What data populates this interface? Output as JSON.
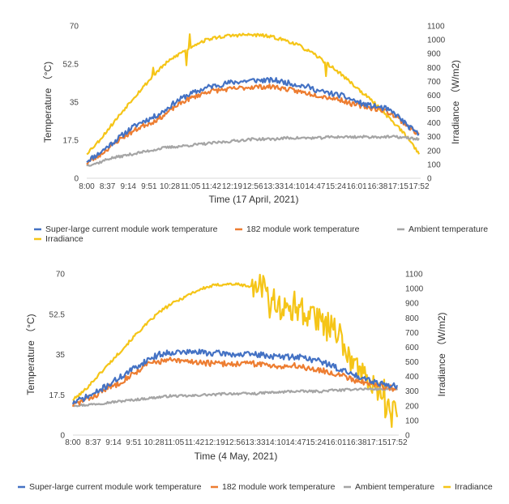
{
  "chart_data": [
    {
      "type": "line",
      "xlabel": "Time (17 April, 2021)",
      "ylabel_left": "Temperature （°C)",
      "ylabel_right": "Irradiance （W/m2)",
      "left_ticks": [
        "0",
        "17.5",
        "35",
        "52.5",
        "70"
      ],
      "right_ticks": [
        "0",
        "100",
        "200",
        "300",
        "400",
        "500",
        "600",
        "700",
        "800",
        "900",
        "1000",
        "1100"
      ],
      "left_ylim": [
        0,
        70
      ],
      "right_ylim": [
        0,
        1100
      ],
      "x_ticks": [
        "8:00",
        "8:37",
        "9:14",
        "9:51",
        "10:28",
        "11:05",
        "11:42",
        "12:19",
        "12:56",
        "13:33",
        "14:10",
        "14:47",
        "15:24",
        "16:01",
        "16:38",
        "17:15",
        "17:52"
      ],
      "legend": {
        "placement": "bottom",
        "rows": [
          [
            "Super-large current module work temperature",
            "182 module work temperature",
            "Ambient temperature"
          ],
          [
            "Irradiance"
          ]
        ]
      },
      "series": [
        {
          "name": "Super-large current module work temperature",
          "axis": "left",
          "color": "#4472c4",
          "values": [
            8,
            11,
            15,
            19,
            23,
            26,
            28,
            31,
            35,
            38,
            40,
            42,
            43,
            44,
            44.5,
            45,
            45,
            45,
            44,
            43,
            42,
            40,
            39,
            38,
            36,
            34,
            33,
            32,
            29,
            24,
            20
          ],
          "noise": 1.2,
          "seed": 11
        },
        {
          "name": "182 module work temperature",
          "axis": "left",
          "color": "#ed7d31",
          "values": [
            7,
            10,
            14,
            18,
            21,
            24,
            26,
            29,
            33,
            36,
            38,
            40,
            40.5,
            41,
            41.5,
            42,
            42,
            42,
            41,
            40,
            39,
            38,
            37,
            36,
            34,
            33,
            32,
            31,
            28,
            24,
            20
          ],
          "noise": 1.1,
          "seed": 23
        },
        {
          "name": "Ambient temperature",
          "axis": "left",
          "color": "#a5a5a5",
          "values": [
            6,
            7,
            9,
            10,
            11,
            12,
            13,
            14,
            14.5,
            15,
            15.5,
            16,
            16.5,
            17,
            17.5,
            18,
            18,
            18,
            18.5,
            18.5,
            18.5,
            18.5,
            19,
            19,
            19,
            19,
            19,
            19,
            19,
            18.5,
            18
          ],
          "noise": 0.6,
          "seed": 37
        },
        {
          "name": "Irradiance",
          "axis": "right",
          "color": "#f5c518",
          "values": [
            180,
            260,
            360,
            460,
            560,
            650,
            740,
            820,
            880,
            930,
            975,
            1005,
            1020,
            1030,
            1035,
            1035,
            1030,
            1015,
            995,
            965,
            920,
            870,
            810,
            750,
            680,
            610,
            540,
            460,
            380,
            290,
            180
          ],
          "noise": 12,
          "seed": 53,
          "spikes": [
            [
              0.3,
              -120
            ],
            [
              0.31,
              90
            ],
            [
              0.2,
              60
            ],
            [
              0.72,
              -90
            ]
          ]
        }
      ]
    },
    {
      "type": "line",
      "xlabel": "Time (4 May, 2021)",
      "ylabel_left": "Temperature （°C)",
      "ylabel_right": "Irradiance （W/m2)",
      "left_ticks": [
        "0",
        "17.5",
        "35",
        "52.5",
        "70"
      ],
      "right_ticks": [
        "0",
        "100",
        "200",
        "300",
        "400",
        "500",
        "600",
        "700",
        "800",
        "900",
        "1000",
        "1100"
      ],
      "left_ylim": [
        0,
        70
      ],
      "right_ylim": [
        0,
        1100
      ],
      "x_ticks": [
        "8:00",
        "8:37",
        "9:14",
        "9:51",
        "10:28",
        "11:05",
        "11:42",
        "12:19",
        "12:56",
        "13:33",
        "14:10",
        "14:47",
        "15:24",
        "16:01",
        "16:38",
        "17:15",
        "17:52"
      ],
      "legend": {
        "placement": "bottom",
        "rows": [
          [
            "Super-large current module work temperature",
            "182 module work temperature",
            "Ambient temperature",
            "Irradiance"
          ]
        ]
      },
      "series": [
        {
          "name": "Super-large current module work temperature",
          "axis": "left",
          "color": "#4472c4",
          "values": [
            14,
            16,
            18,
            21,
            24,
            27,
            30,
            33,
            35,
            36,
            36,
            36,
            36,
            35.5,
            35.5,
            35,
            35,
            35,
            34.5,
            34,
            34,
            34,
            33,
            32,
            30,
            28,
            26,
            25,
            23,
            22,
            21
          ],
          "noise": 1.3,
          "seed": 71
        },
        {
          "name": "182 module work temperature",
          "axis": "left",
          "color": "#ed7d31",
          "values": [
            13,
            15,
            17,
            20,
            22,
            25,
            28,
            31,
            32,
            32.5,
            32,
            32,
            31.5,
            31,
            31,
            31,
            31,
            31,
            30.5,
            30,
            30,
            30,
            29,
            28,
            27,
            26,
            24,
            23,
            22,
            21,
            20
          ],
          "noise": 1.3,
          "seed": 83
        },
        {
          "name": "Ambient temperature",
          "axis": "left",
          "color": "#a5a5a5",
          "values": [
            13,
            13,
            13.5,
            14,
            14.5,
            15,
            15.5,
            16,
            16.5,
            17,
            17,
            17,
            17.5,
            17.5,
            18,
            18,
            18,
            18,
            18.5,
            18.5,
            19,
            19,
            19,
            19,
            19.5,
            19.5,
            20,
            20,
            20,
            20,
            20
          ],
          "noise": 0.5,
          "seed": 97
        },
        {
          "name": "Irradiance",
          "axis": "right",
          "color": "#f5c518",
          "values": [
            240,
            300,
            380,
            460,
            540,
            620,
            700,
            770,
            840,
            890,
            930,
            970,
            1000,
            1020,
            1030,
            1030,
            1020,
            1000,
            960,
            900,
            880,
            850,
            830,
            800,
            720,
            600,
            480,
            400,
            320,
            240,
            180
          ],
          "noise": 10,
          "seed": 101,
          "volatile_from": 0.55,
          "volatile_amp": 110
        }
      ]
    }
  ]
}
